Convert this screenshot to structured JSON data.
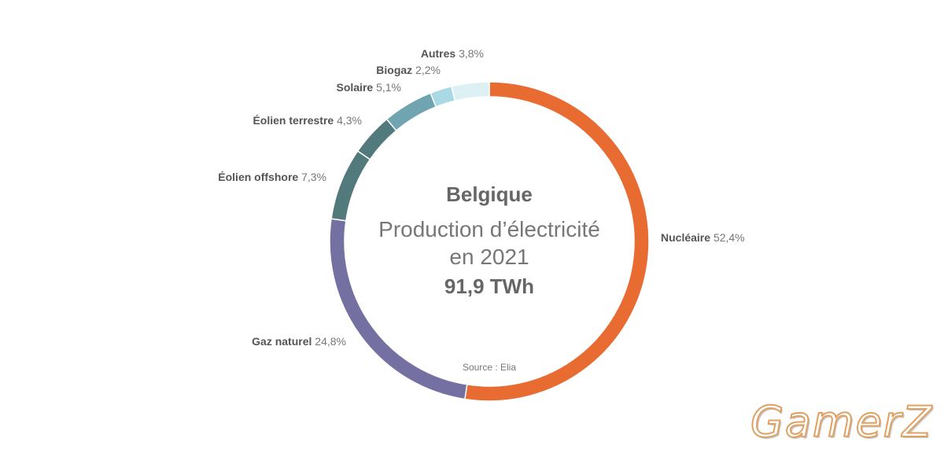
{
  "chart_data": {
    "type": "pie",
    "donut": true,
    "title": "Belgique",
    "subtitle_line1": "Production d’électricité",
    "subtitle_line2": "en 2021",
    "total": "91,9 TWh",
    "source": "Source : Elia",
    "legend": "labels-outside",
    "slices": [
      {
        "name": "Nucléaire",
        "value": 52.4,
        "label": "52,4%",
        "color": "#E86B32"
      },
      {
        "name": "Gaz naturel",
        "value": 24.8,
        "label": "24,8%",
        "color": "#7470A2"
      },
      {
        "name": "Éolien offshore",
        "value": 7.3,
        "label": "7,3%",
        "color": "#52797C"
      },
      {
        "name": "Éolien terrestre",
        "value": 4.3,
        "label": "4,3%",
        "color": "#52797C"
      },
      {
        "name": "Solaire",
        "value": 5.1,
        "label": "5,1%",
        "color": "#6FA4B0"
      },
      {
        "name": "Biogaz",
        "value": 2.2,
        "label": "2,2%",
        "color": "#A9DAE3"
      },
      {
        "name": "Autres",
        "value": 3.8,
        "label": "3,8%",
        "color": "#DDF1F5"
      }
    ]
  },
  "watermark": "GamerZ"
}
